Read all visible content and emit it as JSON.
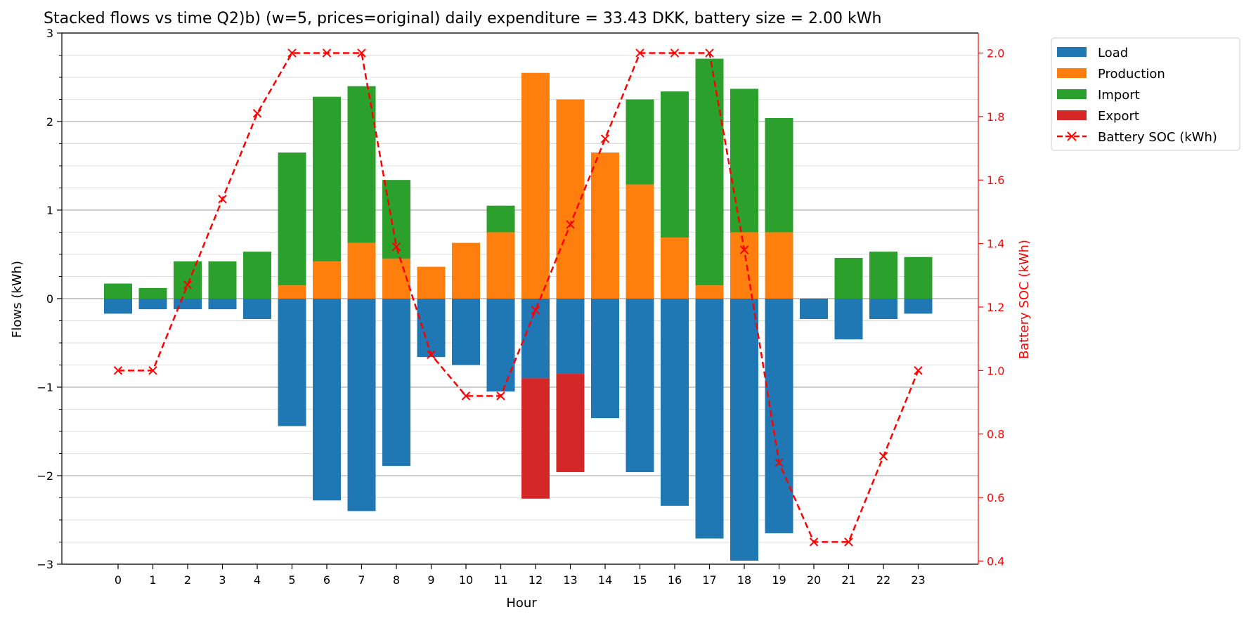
{
  "chart_data": {
    "type": "bar",
    "title": "Stacked flows vs time Q2)b) (w=5, prices=original) daily expenditure = 33.43 DKK, battery size = 2.00 kWh",
    "xlabel": "Hour",
    "ylabel": "Flows (kWh)",
    "y2label": "Battery SOC (kWh)",
    "ylim": [
      -3,
      3
    ],
    "y2lim": [
      0.39,
      2.063
    ],
    "grid": "horizontal major and minor lines",
    "legend_position": "outside right, top",
    "categories": [
      "0",
      "1",
      "2",
      "3",
      "4",
      "5",
      "6",
      "7",
      "8",
      "9",
      "10",
      "11",
      "12",
      "13",
      "14",
      "15",
      "16",
      "17",
      "18",
      "19",
      "20",
      "21",
      "22",
      "23"
    ],
    "y_ticks": [
      "−3",
      "−2",
      "−1",
      "0",
      "1",
      "2",
      "3"
    ],
    "y2_ticks": [
      "0.4",
      "0.6",
      "0.8",
      "1.0",
      "1.2",
      "1.4",
      "1.6",
      "1.8",
      "2.0"
    ],
    "series": [
      {
        "name": "Load",
        "color": "#1f77b4",
        "values": [
          -0.17,
          -0.12,
          -0.12,
          -0.12,
          -0.23,
          -1.44,
          -2.28,
          -2.4,
          -1.89,
          -0.66,
          -0.75,
          -1.05,
          -0.9,
          -0.85,
          -1.35,
          -1.96,
          -2.34,
          -2.71,
          -2.96,
          -2.65,
          -0.23,
          -0.46,
          -0.23,
          -0.17
        ]
      },
      {
        "name": "Production",
        "color": "#ff7f0e",
        "values": [
          0,
          0,
          0,
          0,
          0,
          0.15,
          0.42,
          0.63,
          0.45,
          0.36,
          0.63,
          0.75,
          2.55,
          2.25,
          1.65,
          1.29,
          0.69,
          0.15,
          0.75,
          0.75,
          0,
          0,
          0,
          0
        ]
      },
      {
        "name": "Import",
        "color": "#2ca02c",
        "values": [
          0.17,
          0.12,
          0.42,
          0.42,
          0.53,
          1.5,
          1.86,
          1.77,
          0.89,
          0,
          0,
          0.3,
          0,
          0,
          0,
          0.96,
          1.65,
          2.56,
          1.62,
          1.29,
          0,
          0.46,
          0.53,
          0.47
        ]
      },
      {
        "name": "Export",
        "color": "#d62728",
        "values": [
          0,
          0,
          0,
          0,
          0,
          0,
          0,
          0,
          0,
          0,
          0,
          0,
          -1.36,
          -1.11,
          0,
          0,
          0,
          0,
          0,
          0,
          0,
          0,
          0,
          0
        ]
      },
      {
        "name": "Battery SOC (kWh)",
        "color": "#ff0000",
        "type": "line",
        "values": [
          1.0,
          1.0,
          1.27,
          1.54,
          1.81,
          2.0,
          2.0,
          2.0,
          1.39,
          1.05,
          0.92,
          0.92,
          1.19,
          1.46,
          1.73,
          2.0,
          2.0,
          2.0,
          1.38,
          0.71,
          0.46,
          0.46,
          0.73,
          1.0
        ]
      }
    ]
  }
}
